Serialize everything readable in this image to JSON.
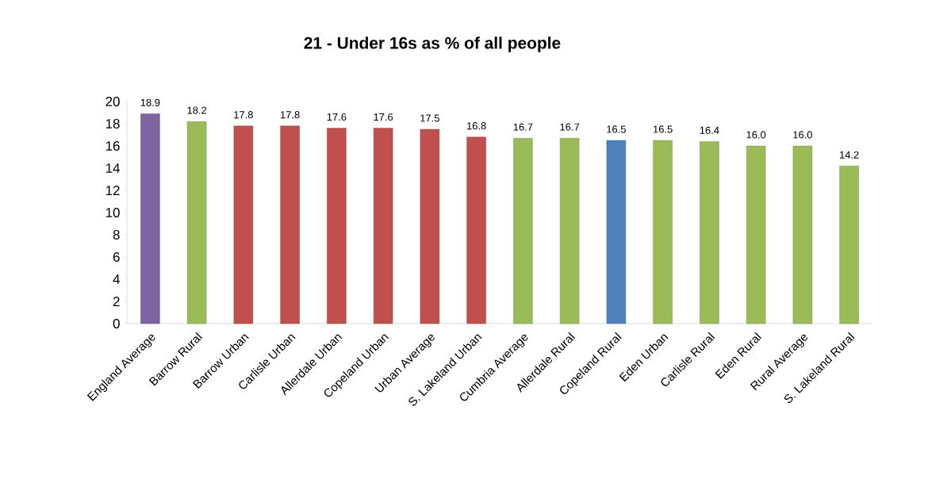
{
  "chart_data": {
    "type": "bar",
    "title": "21 - Under 16s as % of all people",
    "categories": [
      "England Average",
      "Barrow Rural",
      "Barrow Urban",
      "Carlisle Urban",
      "Allerdale Urban",
      "Copeland Urban",
      "Urban Average",
      "S. Lakeland Urban",
      "Cumbria Average",
      "Allerdale Rural",
      "Copeland Rural",
      "Eden Urban",
      "Carlisle Rural",
      "Eden Rural",
      "Rural Average",
      "S. Lakeland Rural"
    ],
    "values": [
      18.9,
      18.2,
      17.8,
      17.8,
      17.6,
      17.6,
      17.5,
      16.8,
      16.7,
      16.7,
      16.5,
      16.5,
      16.4,
      16.0,
      16.0,
      14.2
    ],
    "value_labels": [
      "18.9",
      "18.2",
      "17.8",
      "17.8",
      "17.6",
      "17.6",
      "17.5",
      "16.8",
      "16.7",
      "16.7",
      "16.5",
      "16.5",
      "16.4",
      "16.0",
      "16.0",
      "14.2"
    ],
    "colors": [
      "#8064a2",
      "#9bbb59",
      "#c0504d",
      "#c0504d",
      "#c0504d",
      "#c0504d",
      "#c0504d",
      "#c0504d",
      "#9bbb59",
      "#9bbb59",
      "#4f81bd",
      "#9bbb59",
      "#9bbb59",
      "#9bbb59",
      "#9bbb59",
      "#9bbb59"
    ],
    "ylim": [
      0,
      20
    ],
    "yticks": [
      0,
      2,
      4,
      6,
      8,
      10,
      12,
      14,
      16,
      18,
      20
    ]
  }
}
